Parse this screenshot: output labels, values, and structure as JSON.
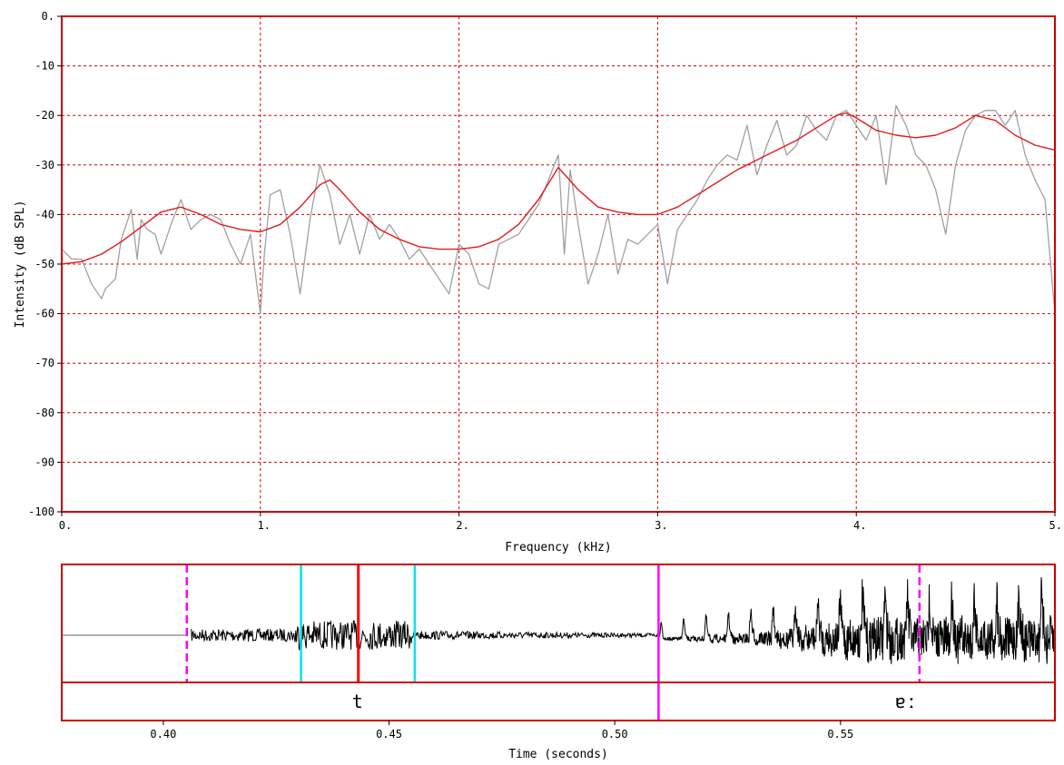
{
  "chart_data": [
    {
      "type": "line",
      "title": "",
      "xlabel": "Frequency (kHz)",
      "ylabel": "Intensity (dB SPL)",
      "xlim": [
        0,
        5
      ],
      "ylim": [
        -100,
        0
      ],
      "grid": true,
      "x_ticks": [
        {
          "value": 0,
          "label": "0."
        },
        {
          "value": 1,
          "label": "1."
        },
        {
          "value": 2,
          "label": "2."
        },
        {
          "value": 3,
          "label": "3."
        },
        {
          "value": 4,
          "label": "4."
        },
        {
          "value": 5,
          "label": "5."
        }
      ],
      "y_ticks": [
        {
          "value": 0,
          "label": "0."
        },
        {
          "value": -10,
          "label": "-10"
        },
        {
          "value": -20,
          "label": "-20"
        },
        {
          "value": -30,
          "label": "-30"
        },
        {
          "value": -40,
          "label": "-40"
        },
        {
          "value": -50,
          "label": "-50"
        },
        {
          "value": -60,
          "label": "-60"
        },
        {
          "value": -70,
          "label": "-70"
        },
        {
          "value": -80,
          "label": "-80"
        },
        {
          "value": -90,
          "label": "-90"
        },
        {
          "value": -100,
          "label": "-100"
        }
      ],
      "series": [
        {
          "color": "#a0a0a0",
          "x": [
            0,
            0.05,
            0.1,
            0.15,
            0.2,
            0.22,
            0.27,
            0.3,
            0.35,
            0.38,
            0.4,
            0.43,
            0.47,
            0.5,
            0.55,
            0.6,
            0.65,
            0.7,
            0.75,
            0.8,
            0.85,
            0.9,
            0.95,
            1.0,
            1.02,
            1.05,
            1.1,
            1.15,
            1.2,
            1.25,
            1.3,
            1.35,
            1.4,
            1.45,
            1.5,
            1.55,
            1.6,
            1.65,
            1.7,
            1.75,
            1.8,
            1.85,
            1.9,
            1.95,
            2.0,
            2.05,
            2.1,
            2.15,
            2.2,
            2.25,
            2.3,
            2.35,
            2.4,
            2.45,
            2.5,
            2.53,
            2.56,
            2.6,
            2.65,
            2.7,
            2.75,
            2.8,
            2.85,
            2.9,
            2.95,
            3.0,
            3.05,
            3.1,
            3.15,
            3.2,
            3.25,
            3.3,
            3.35,
            3.4,
            3.45,
            3.5,
            3.55,
            3.6,
            3.65,
            3.7,
            3.75,
            3.8,
            3.85,
            3.9,
            3.95,
            4.0,
            4.05,
            4.1,
            4.15,
            4.2,
            4.25,
            4.3,
            4.35,
            4.4,
            4.45,
            4.5,
            4.55,
            4.6,
            4.65,
            4.7,
            4.75,
            4.8,
            4.85,
            4.9,
            4.95,
            5.0
          ],
          "values": [
            -47,
            -49,
            -49,
            -54,
            -57,
            -55,
            -53,
            -45,
            -39,
            -49,
            -41,
            -43,
            -44,
            -48,
            -42,
            -37,
            -43,
            -41,
            -40,
            -41,
            -46,
            -50,
            -44,
            -60,
            -48,
            -36,
            -35,
            -44,
            -56,
            -41,
            -30,
            -36,
            -46,
            -40,
            -48,
            -40,
            -45,
            -42,
            -45,
            -49,
            -47,
            -50,
            -53,
            -56,
            -46,
            -48,
            -54,
            -55,
            -46,
            -45,
            -44,
            -41,
            -38,
            -33,
            -28,
            -48,
            -31,
            -42,
            -54,
            -48,
            -40,
            -52,
            -45,
            -46,
            -44,
            -42,
            -54,
            -43,
            -40,
            -37,
            -33,
            -30,
            -28,
            -29,
            -22,
            -32,
            -26,
            -21,
            -28,
            -26,
            -20,
            -23,
            -25,
            -20,
            -19,
            -22,
            -25,
            -20,
            -34,
            -18,
            -22,
            -28,
            -30,
            -35,
            -44,
            -30,
            -23,
            -20,
            -19,
            -19,
            -22,
            -19,
            -28,
            -33,
            -37,
            -60
          ]
        },
        {
          "color": "#e31a1c",
          "x": [
            0,
            0.1,
            0.2,
            0.3,
            0.4,
            0.5,
            0.6,
            0.7,
            0.8,
            0.9,
            1.0,
            1.1,
            1.2,
            1.3,
            1.35,
            1.4,
            1.5,
            1.6,
            1.7,
            1.8,
            1.9,
            2.0,
            2.1,
            2.2,
            2.3,
            2.4,
            2.5,
            2.6,
            2.7,
            2.8,
            2.9,
            3.0,
            3.1,
            3.2,
            3.3,
            3.4,
            3.5,
            3.6,
            3.7,
            3.8,
            3.9,
            3.95,
            4.0,
            4.1,
            4.2,
            4.3,
            4.4,
            4.5,
            4.6,
            4.7,
            4.8,
            4.9,
            5.0
          ],
          "values": [
            -50,
            -49.5,
            -48,
            -45.5,
            -42.5,
            -39.5,
            -38.5,
            -40,
            -42,
            -43,
            -43.5,
            -42,
            -38.5,
            -34,
            -33,
            -35,
            -39.5,
            -43,
            -45,
            -46.5,
            -47,
            -47,
            -46.5,
            -45,
            -42,
            -37,
            -30.5,
            -35,
            -38.5,
            -39.5,
            -40,
            -40,
            -38.5,
            -36,
            -33.5,
            -31,
            -29,
            -27,
            -25,
            -22.5,
            -20,
            -19.5,
            -20.5,
            -23,
            -24,
            -24.5,
            -24,
            -22.5,
            -20,
            -21,
            -24,
            -26,
            -27
          ]
        }
      ]
    },
    {
      "type": "line",
      "title": "",
      "xlabel": "Time (seconds)",
      "ylabel": "",
      "xlim": [
        0.3775,
        0.5975
      ],
      "grid": false,
      "x_ticks": [
        {
          "value": 0.4,
          "label": "0.40"
        },
        {
          "value": 0.45,
          "label": "0.45"
        },
        {
          "value": 0.5,
          "label": "0.50"
        },
        {
          "value": 0.55,
          "label": "0.55"
        }
      ],
      "markers": [
        {
          "time": 0.4052,
          "color": "#ff00ff",
          "style": "dashed"
        },
        {
          "time": 0.4305,
          "color": "#00e5ee",
          "style": "solid"
        },
        {
          "time": 0.4432,
          "color": "#ff0000",
          "style": "solid"
        },
        {
          "time": 0.4557,
          "color": "#00e5ee",
          "style": "solid"
        },
        {
          "time": 0.5097,
          "color": "#ff00ff",
          "style": "solid"
        },
        {
          "time": 0.5675,
          "color": "#ff00ff",
          "style": "dashed"
        }
      ],
      "segments": [
        {
          "label": "t",
          "time": 0.443
        },
        {
          "label": "ɐː",
          "time": 0.5645
        }
      ],
      "waveform": {
        "silence_end": 0.4052,
        "noise_start": 0.4062,
        "burst_start": 0.429,
        "burst_end": 0.455,
        "noise_end": 0.5097,
        "periodic_start": 0.5097,
        "period": 0.00495
      }
    }
  ]
}
